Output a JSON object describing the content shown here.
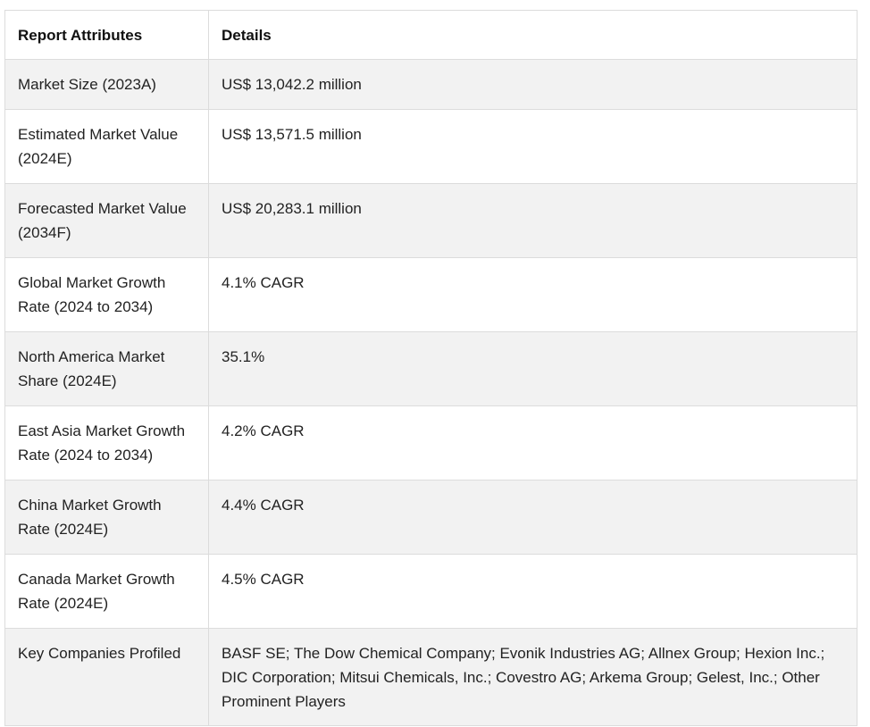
{
  "table": {
    "headers": [
      "Report Attributes",
      "Details"
    ],
    "rows": [
      {
        "attribute": "Market Size (2023A)",
        "details": "US$ 13,042.2 million"
      },
      {
        "attribute": "Estimated Market Value (2024E)",
        "details": "US$ 13,571.5 million"
      },
      {
        "attribute": "Forecasted Market Value (2034F)",
        "details": "US$ 20,283.1 million"
      },
      {
        "attribute": "Global Market Growth Rate (2024 to 2034)",
        "details": "4.1% CAGR"
      },
      {
        "attribute": "North America Market Share (2024E)",
        "details": "35.1%"
      },
      {
        "attribute": "East Asia Market Growth Rate (2024 to 2034)",
        "details": "4.2% CAGR"
      },
      {
        "attribute": "China Market Growth Rate (2024E)",
        "details": "4.4% CAGR"
      },
      {
        "attribute": "Canada Market Growth Rate (2024E)",
        "details": "4.5% CAGR"
      },
      {
        "attribute": "Key Companies Profiled",
        "details": "BASF SE; The Dow Chemical Company; Evonik Industries AG; Allnex Group; Hexion Inc.; DIC Corporation; Mitsui Chemicals, Inc.; Covestro AG; Arkema Group; Gelest, Inc.; Other Prominent Players"
      }
    ]
  }
}
